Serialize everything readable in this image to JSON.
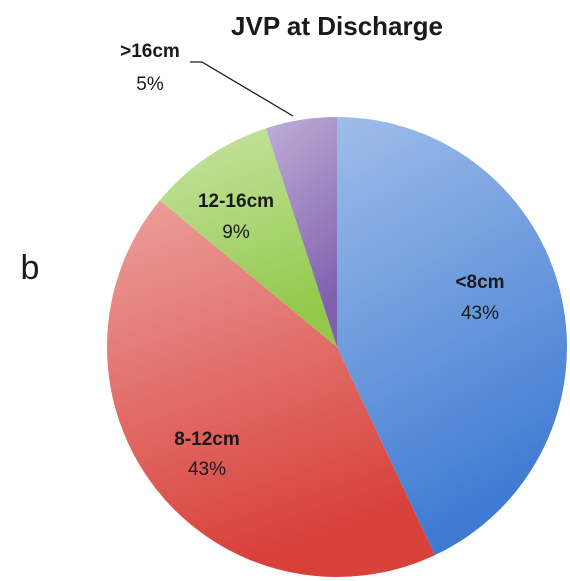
{
  "chart_data": {
    "type": "pie",
    "title": "JVP at Discharge",
    "panel_label": "b",
    "categories": [
      "<8cm",
      "8-12cm",
      "12-16cm",
      ">16cm"
    ],
    "values": [
      43,
      43,
      9,
      5
    ],
    "value_labels": [
      "43%",
      "43%",
      "9%",
      "5%"
    ],
    "colors": [
      "#3f7bd3",
      "#d8403a",
      "#92c94a",
      "#7f5fae"
    ]
  }
}
